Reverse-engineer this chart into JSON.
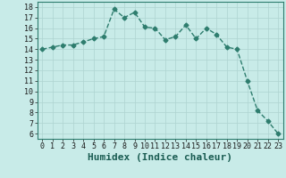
{
  "x": [
    0,
    1,
    2,
    3,
    4,
    5,
    6,
    7,
    8,
    9,
    10,
    11,
    12,
    13,
    14,
    15,
    16,
    17,
    18,
    19,
    20,
    21,
    22,
    23
  ],
  "y": [
    14,
    14.2,
    14.4,
    14.4,
    14.7,
    15,
    15.2,
    17.8,
    17,
    17.5,
    16.1,
    16,
    14.9,
    15.2,
    16.3,
    15,
    16,
    15.4,
    14.2,
    14,
    11,
    8.2,
    7.2,
    6
  ],
  "line_color": "#2e7d6e",
  "marker": "D",
  "marker_size": 2.5,
  "bg_color": "#c8ebe8",
  "grid_color": "#aed4d0",
  "xlabel": "Humidex (Indice chaleur)",
  "xlabel_fontsize": 8,
  "ylim": [
    5.5,
    18.5
  ],
  "xlim": [
    -0.5,
    23.5
  ],
  "yticks": [
    6,
    7,
    8,
    9,
    10,
    11,
    12,
    13,
    14,
    15,
    16,
    17,
    18
  ],
  "xticks": [
    0,
    1,
    2,
    3,
    4,
    5,
    6,
    7,
    8,
    9,
    10,
    11,
    12,
    13,
    14,
    15,
    16,
    17,
    18,
    19,
    20,
    21,
    22,
    23
  ],
  "tick_fontsize": 6,
  "linewidth": 1.0
}
